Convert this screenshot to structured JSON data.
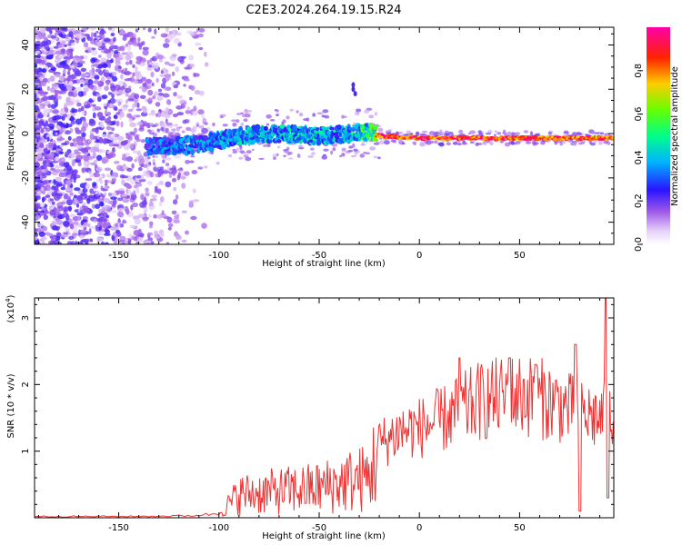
{
  "title": "C2E3.2024.264.19.15.R24",
  "chart_data": [
    {
      "type": "heatmap",
      "xlabel": "Height of straight line (km)",
      "ylabel": "Frequency (Hz)",
      "xlim": [
        -192,
        97
      ],
      "ylim": [
        -50,
        48
      ],
      "xticks": [
        -150,
        -100,
        -50,
        0,
        50
      ],
      "yticks": [
        -40,
        -20,
        0,
        20,
        40
      ],
      "colorbar": {
        "label": "Normalized spectral amplitude",
        "range": [
          0,
          1
        ],
        "ticks": [
          "0.0",
          "0.2",
          "0.4",
          "0.6",
          "0.8"
        ],
        "colors": [
          "#ffffff",
          "#c58cf2",
          "#7a16e6",
          "#1a1aff",
          "#00c8ff",
          "#00ff66",
          "#ccff00",
          "#ff7700",
          "#ff0000",
          "#ff00cc"
        ]
      },
      "ridge": [
        {
          "x": -135,
          "freq": -6,
          "amp": 0.35
        },
        {
          "x": -110,
          "freq": -5,
          "amp": 0.4
        },
        {
          "x": -90,
          "freq": -1,
          "amp": 0.45
        },
        {
          "x": -70,
          "freq": 0,
          "amp": 0.45
        },
        {
          "x": -50,
          "freq": -1,
          "amp": 0.45
        },
        {
          "x": -35,
          "freq": 0,
          "amp": 0.45
        },
        {
          "x": -25,
          "freq": 1,
          "amp": 0.6
        },
        {
          "x": -20,
          "freq": -1,
          "amp": 0.95
        },
        {
          "x": 0,
          "freq": -2,
          "amp": 0.95
        },
        {
          "x": 50,
          "freq": -2,
          "amp": 0.95
        },
        {
          "x": 95,
          "freq": -2,
          "amp": 0.9
        }
      ],
      "noise_region": {
        "x_from": -192,
        "x_to": -110,
        "freq_range": [
          -50,
          48
        ]
      }
    },
    {
      "type": "line",
      "xlabel": "Height of straight line (km)",
      "ylabel": "SNR (10 * v/v)",
      "y_multiplier": "(x10",
      "y_multiplier_exp": "4",
      "y_multiplier_close": ")",
      "xlim": [
        -192,
        97
      ],
      "ylim": [
        0,
        3.3
      ],
      "xticks": [
        -150,
        -100,
        -50,
        0,
        50
      ],
      "yticks": [
        1,
        2,
        3
      ],
      "color": "#ee3333",
      "envelope": [
        {
          "x": -192,
          "y": 0.02
        },
        {
          "x": -140,
          "y": 0.02
        },
        {
          "x": -115,
          "y": 0.03
        },
        {
          "x": -100,
          "y": 0.06
        },
        {
          "x": -90,
          "y": 0.35
        },
        {
          "x": -70,
          "y": 0.4
        },
        {
          "x": -50,
          "y": 0.45
        },
        {
          "x": -35,
          "y": 0.55
        },
        {
          "x": -25,
          "y": 0.6
        },
        {
          "x": -20,
          "y": 1.1
        },
        {
          "x": -10,
          "y": 1.3
        },
        {
          "x": 0,
          "y": 1.35
        },
        {
          "x": 10,
          "y": 1.45
        },
        {
          "x": 20,
          "y": 1.6
        },
        {
          "x": 30,
          "y": 1.75
        },
        {
          "x": 40,
          "y": 1.8
        },
        {
          "x": 50,
          "y": 1.85
        },
        {
          "x": 60,
          "y": 1.8
        },
        {
          "x": 70,
          "y": 1.7
        },
        {
          "x": 80,
          "y": 1.55
        },
        {
          "x": 90,
          "y": 1.5
        },
        {
          "x": 97,
          "y": 1.6
        }
      ],
      "peaks": [
        {
          "x": 20,
          "y": 2.4
        },
        {
          "x": 45,
          "y": 2.4
        },
        {
          "x": 58,
          "y": 2.3
        },
        {
          "x": 78,
          "y": 2.6
        },
        {
          "x": 80,
          "y": 0.1
        },
        {
          "x": 93,
          "y": 3.3
        },
        {
          "x": 94,
          "y": 0.3
        }
      ]
    }
  ]
}
